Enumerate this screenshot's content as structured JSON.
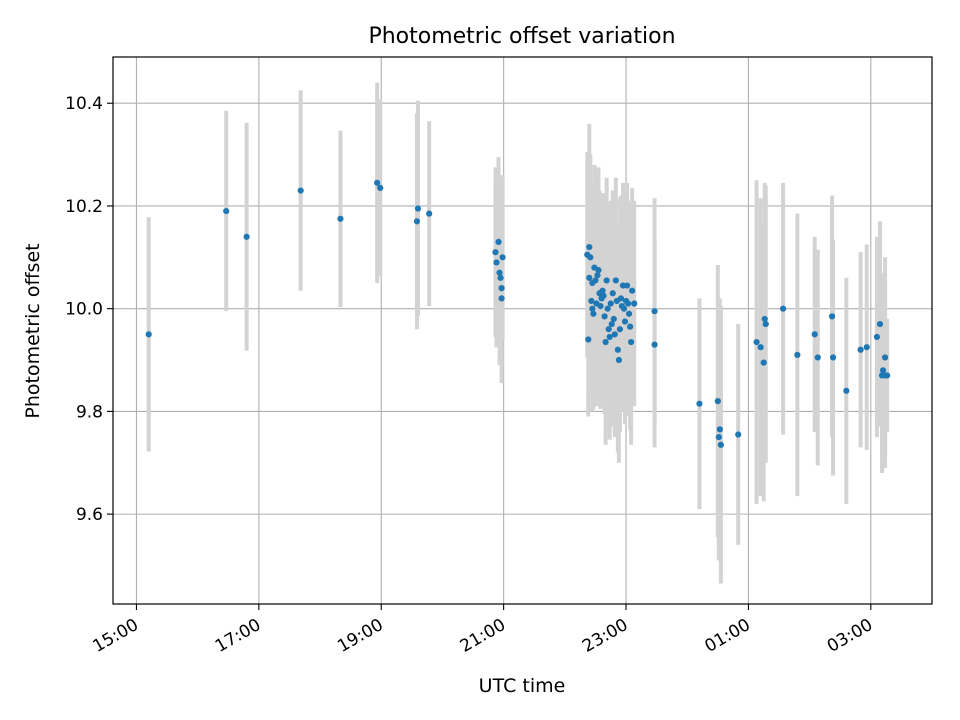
{
  "chart_data": {
    "type": "scatter",
    "title": "Photometric offset variation",
    "xlabel": "UTC time",
    "ylabel": "Photometric offset",
    "xlim": [
      "14:37",
      "04:00"
    ],
    "ylim": [
      9.425,
      10.49
    ],
    "x_ticks": [
      "15:00",
      "17:00",
      "19:00",
      "21:00",
      "23:00",
      "01:00",
      "03:00"
    ],
    "y_ticks": [
      9.6,
      9.8,
      10.0,
      10.2,
      10.4
    ],
    "grid": true,
    "legend": "none",
    "colors": {
      "point": "#1f77b4",
      "errorbar": "#d3d3d3",
      "grid": "#b0b0b0",
      "axes": "#000000"
    },
    "series": [
      {
        "x": [
          "15:12",
          "16:28",
          "16:48",
          "17:41",
          "18:20",
          "18:56",
          "18:59",
          "19:35",
          "19:36",
          "19:47",
          "20:52",
          "20:53",
          "20:55",
          "20:56",
          "20:57",
          "20:58",
          "20:58",
          "20:59",
          "22:22",
          "22:23",
          "22:24",
          "22:24",
          "22:25",
          "22:26",
          "22:27",
          "22:27",
          "22:28",
          "22:29",
          "22:30",
          "22:31",
          "22:32",
          "22:33",
          "22:34",
          "22:35",
          "22:36",
          "22:37",
          "22:38",
          "22:39",
          "22:40",
          "22:41",
          "22:42",
          "22:43",
          "22:44",
          "22:45",
          "22:46",
          "22:47",
          "22:48",
          "22:49",
          "22:50",
          "22:51",
          "22:52",
          "22:53",
          "22:54",
          "22:55",
          "22:56",
          "22:57",
          "22:58",
          "22:59",
          "23:00",
          "23:01",
          "23:02",
          "23:03",
          "23:04",
          "23:05",
          "23:06",
          "23:08",
          "23:28",
          "23:28",
          "00:12",
          "00:30",
          "00:31",
          "00:32",
          "00:33",
          "00:50",
          "01:08",
          "01:12",
          "01:15",
          "01:16",
          "01:17",
          "01:34",
          "01:48",
          "02:05",
          "02:08",
          "02:22",
          "02:23",
          "02:36",
          "02:50",
          "02:56",
          "03:06",
          "03:09",
          "03:11",
          "03:12",
          "03:14",
          "03:14",
          "03:16"
        ],
        "y": [
          9.95,
          10.19,
          10.14,
          10.23,
          10.175,
          10.245,
          10.235,
          10.17,
          10.195,
          10.185,
          10.11,
          10.09,
          10.13,
          10.07,
          10.06,
          10.04,
          10.02,
          10.1,
          10.105,
          9.94,
          10.06,
          10.12,
          10.1,
          10.015,
          10.05,
          10.0,
          9.99,
          10.08,
          10.055,
          10.01,
          10.065,
          10.075,
          10.03,
          10.005,
          10.02,
          10.035,
          10.025,
          9.985,
          9.935,
          10.055,
          10.0,
          9.96,
          9.945,
          10.01,
          9.97,
          10.03,
          9.98,
          9.95,
          10.055,
          10.015,
          9.92,
          9.9,
          9.96,
          10.02,
          10.005,
          10.045,
          10.0,
          9.975,
          10.015,
          10.045,
          10.01,
          9.99,
          9.965,
          9.935,
          10.035,
          10.01,
          9.93,
          9.995,
          9.815,
          9.82,
          9.75,
          9.765,
          9.735,
          9.755,
          9.935,
          9.925,
          9.895,
          9.98,
          9.97,
          10.0,
          9.91,
          9.95,
          9.905,
          9.985,
          9.905,
          9.84,
          9.92,
          9.925,
          9.945,
          9.97,
          9.87,
          9.88,
          9.905,
          9.87,
          9.87
        ],
        "yerr": [
          0.228,
          0.195,
          0.222,
          0.195,
          0.172,
          0.195,
          0.172,
          0.21,
          0.21,
          0.18,
          0.165,
          0.165,
          0.165,
          0.18,
          0.16,
          0.165,
          0.165,
          0.16,
          0.2,
          0.15,
          0.2,
          0.24,
          0.2,
          0.18,
          0.2,
          0.2,
          0.185,
          0.2,
          0.195,
          0.2,
          0.2,
          0.2,
          0.2,
          0.2,
          0.2,
          0.18,
          0.2,
          0.19,
          0.2,
          0.2,
          0.2,
          0.2,
          0.2,
          0.2,
          0.2,
          0.2,
          0.2,
          0.2,
          0.2,
          0.2,
          0.2,
          0.2,
          0.2,
          0.2,
          0.2,
          0.2,
          0.2,
          0.2,
          0.2,
          0.2,
          0.2,
          0.2,
          0.2,
          0.2,
          0.2,
          0.2,
          0.2,
          0.22,
          0.205,
          0.265,
          0.24,
          0.255,
          0.27,
          0.215,
          0.315,
          0.29,
          0.27,
          0.265,
          0.27,
          0.245,
          0.275,
          0.19,
          0.21,
          0.235,
          0.23,
          0.22,
          0.19,
          0.2,
          0.195,
          0.2,
          0.19,
          0.19,
          0.195,
          0.18,
          0.11
        ]
      }
    ]
  }
}
